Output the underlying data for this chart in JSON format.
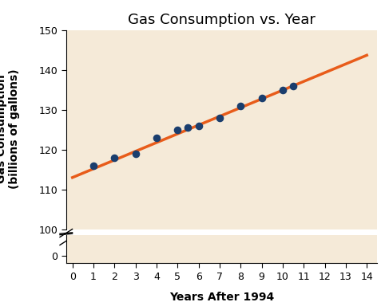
{
  "title": "Gas Consumption vs. Year",
  "xlabel": "Years After 1994",
  "ylabel": "Gas Consumption\n(billions of gallons)",
  "scatter_x": [
    1,
    2,
    3,
    4,
    5,
    5.5,
    6,
    7,
    8,
    9,
    10,
    10.5
  ],
  "scatter_y": [
    116,
    118,
    119,
    123,
    125,
    125.5,
    126,
    128,
    131,
    133,
    135,
    136
  ],
  "line_x_start": 0,
  "line_x_end": 14,
  "line_slope": 2.2,
  "line_intercept": 113.0,
  "scatter_color": "#1a3e6e",
  "line_color": "#e85c1a",
  "bg_color": "#f5ead8",
  "xlim": [
    -0.3,
    14.5
  ],
  "ylim_top_min": 100,
  "ylim_top_max": 150,
  "ylim_bottom_min": -0.5,
  "ylim_bottom_max": 1.5,
  "yticks_top": [
    100,
    110,
    120,
    130,
    140,
    150
  ],
  "xticks": [
    0,
    1,
    2,
    3,
    4,
    5,
    6,
    7,
    8,
    9,
    10,
    11,
    12,
    13,
    14
  ],
  "title_fontsize": 13,
  "label_fontsize": 10,
  "tick_fontsize": 9,
  "line_width": 2.5,
  "scatter_size": 35
}
